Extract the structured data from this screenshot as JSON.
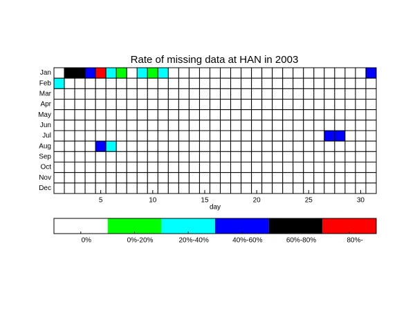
{
  "chart_data": {
    "type": "heatmap",
    "title": "Rate of missing data at HAN in 2003",
    "x_label": "day",
    "categories": [
      "Jan",
      "Feb",
      "Mar",
      "Apr",
      "May",
      "Jun",
      "Jul",
      "Aug",
      "Sep",
      "Oct",
      "Nov",
      "Dec"
    ],
    "xlim": [
      0.5,
      31.5
    ],
    "xticks": [
      5,
      10,
      15,
      20,
      25,
      30
    ],
    "colors": [
      "#ffffff",
      "#00ff00",
      "#00ffff",
      "#0000ff",
      "#000000",
      "#ff0000"
    ],
    "legend_labels": [
      "0%",
      "0%-20%",
      "20%-40%",
      "40%-60%",
      "60%-80%",
      "80%-"
    ],
    "values": [
      [
        0,
        4,
        4,
        3,
        5,
        2,
        1,
        0,
        2,
        1,
        2,
        0,
        0,
        0,
        0,
        0,
        0,
        0,
        0,
        0,
        0,
        0,
        0,
        0,
        0,
        0,
        0,
        0,
        0,
        0,
        3
      ],
      [
        2,
        0,
        0,
        0,
        0,
        0,
        0,
        0,
        0,
        0,
        0,
        0,
        0,
        0,
        0,
        0,
        0,
        0,
        0,
        0,
        0,
        0,
        0,
        0,
        0,
        0,
        0,
        0,
        0,
        0,
        0
      ],
      [
        0,
        0,
        0,
        0,
        0,
        0,
        0,
        0,
        0,
        0,
        0,
        0,
        0,
        0,
        0,
        0,
        0,
        0,
        0,
        0,
        0,
        0,
        0,
        0,
        0,
        0,
        0,
        0,
        0,
        0,
        0
      ],
      [
        0,
        0,
        0,
        0,
        0,
        0,
        0,
        0,
        0,
        0,
        0,
        0,
        0,
        0,
        0,
        0,
        0,
        0,
        0,
        0,
        0,
        0,
        0,
        0,
        0,
        0,
        0,
        0,
        0,
        0,
        0
      ],
      [
        0,
        0,
        0,
        0,
        0,
        0,
        0,
        0,
        0,
        0,
        0,
        0,
        0,
        0,
        0,
        0,
        0,
        0,
        0,
        0,
        0,
        0,
        0,
        0,
        0,
        0,
        0,
        0,
        0,
        0,
        0
      ],
      [
        0,
        0,
        0,
        0,
        0,
        0,
        0,
        0,
        0,
        0,
        0,
        0,
        0,
        0,
        0,
        0,
        0,
        0,
        0,
        0,
        0,
        0,
        0,
        0,
        0,
        0,
        0,
        0,
        0,
        0,
        0
      ],
      [
        0,
        0,
        0,
        0,
        0,
        0,
        0,
        0,
        0,
        0,
        0,
        0,
        0,
        0,
        0,
        0,
        0,
        0,
        0,
        0,
        0,
        0,
        0,
        0,
        0,
        0,
        3,
        3,
        0,
        0,
        0
      ],
      [
        0,
        0,
        0,
        0,
        3,
        2,
        0,
        0,
        0,
        0,
        0,
        0,
        0,
        0,
        0,
        0,
        0,
        0,
        0,
        0,
        0,
        0,
        0,
        0,
        0,
        0,
        0,
        0,
        0,
        0,
        0
      ],
      [
        0,
        0,
        0,
        0,
        0,
        0,
        0,
        0,
        0,
        0,
        0,
        0,
        0,
        0,
        0,
        0,
        0,
        0,
        0,
        0,
        0,
        0,
        0,
        0,
        0,
        0,
        0,
        0,
        0,
        0,
        0
      ],
      [
        0,
        0,
        0,
        0,
        0,
        0,
        0,
        0,
        0,
        0,
        0,
        0,
        0,
        0,
        0,
        0,
        0,
        0,
        0,
        0,
        0,
        0,
        0,
        0,
        0,
        0,
        0,
        0,
        0,
        0,
        0
      ],
      [
        0,
        0,
        0,
        0,
        0,
        0,
        0,
        0,
        0,
        0,
        0,
        0,
        0,
        0,
        0,
        0,
        0,
        0,
        0,
        0,
        0,
        0,
        0,
        0,
        0,
        0,
        0,
        0,
        0,
        0,
        0
      ],
      [
        0,
        0,
        0,
        0,
        0,
        0,
        0,
        0,
        0,
        0,
        0,
        0,
        0,
        0,
        0,
        0,
        0,
        0,
        0,
        0,
        0,
        0,
        0,
        0,
        0,
        0,
        0,
        0,
        0,
        0,
        0
      ]
    ]
  }
}
